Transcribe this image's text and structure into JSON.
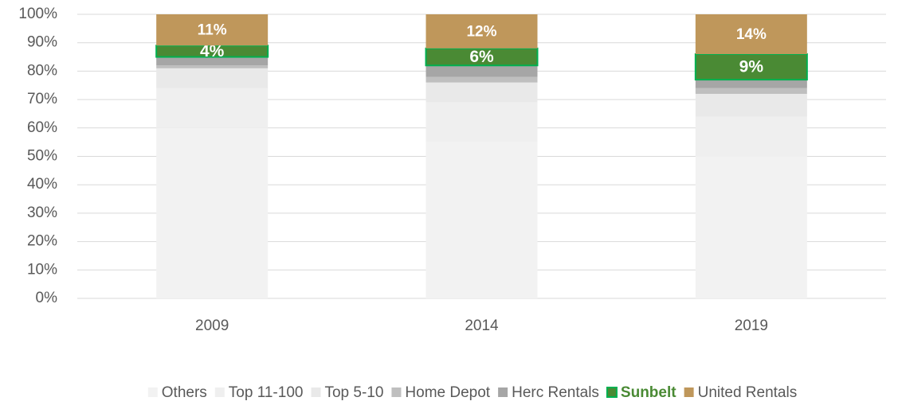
{
  "chart_data": {
    "type": "stacked_bar",
    "categories": [
      "2009",
      "2014",
      "2019"
    ],
    "series": [
      {
        "name": "Others",
        "color": "#f2f2f2",
        "values": [
          60,
          55,
          50
        ]
      },
      {
        "name": "Top 11-100",
        "color": "#efefef",
        "values": [
          14,
          14,
          14
        ]
      },
      {
        "name": "Top 5-10",
        "color": "#e9e9e9",
        "values": [
          7,
          7,
          8
        ]
      },
      {
        "name": "Home Depot",
        "color": "#bfbfbf",
        "values": [
          1,
          2,
          2
        ]
      },
      {
        "name": "Herc Rentals",
        "color": "#a6a6a6",
        "values": [
          3,
          4,
          3
        ]
      },
      {
        "name": "Sunbelt",
        "color": "#4a8a34",
        "values": [
          4,
          6,
          9
        ],
        "value_labels": [
          "4%",
          "6%",
          "9%"
        ]
      },
      {
        "name": "United Rentals",
        "color": "#bf975b",
        "values": [
          11,
          12,
          14
        ],
        "value_labels": [
          "11%",
          "12%",
          "14%"
        ]
      }
    ],
    "ylim": [
      0,
      100
    ],
    "yticks": [
      {
        "value": 0,
        "label": "0%"
      },
      {
        "value": 10,
        "label": "10%"
      },
      {
        "value": 20,
        "label": "20%"
      },
      {
        "value": 30,
        "label": "30%"
      },
      {
        "value": 40,
        "label": "40%"
      },
      {
        "value": 50,
        "label": "50%"
      },
      {
        "value": 60,
        "label": "60%"
      },
      {
        "value": 70,
        "label": "70%"
      },
      {
        "value": 80,
        "label": "80%"
      },
      {
        "value": 90,
        "label": "90%"
      },
      {
        "value": 100,
        "label": "100%"
      }
    ],
    "grid": true,
    "legend": "bottom"
  }
}
